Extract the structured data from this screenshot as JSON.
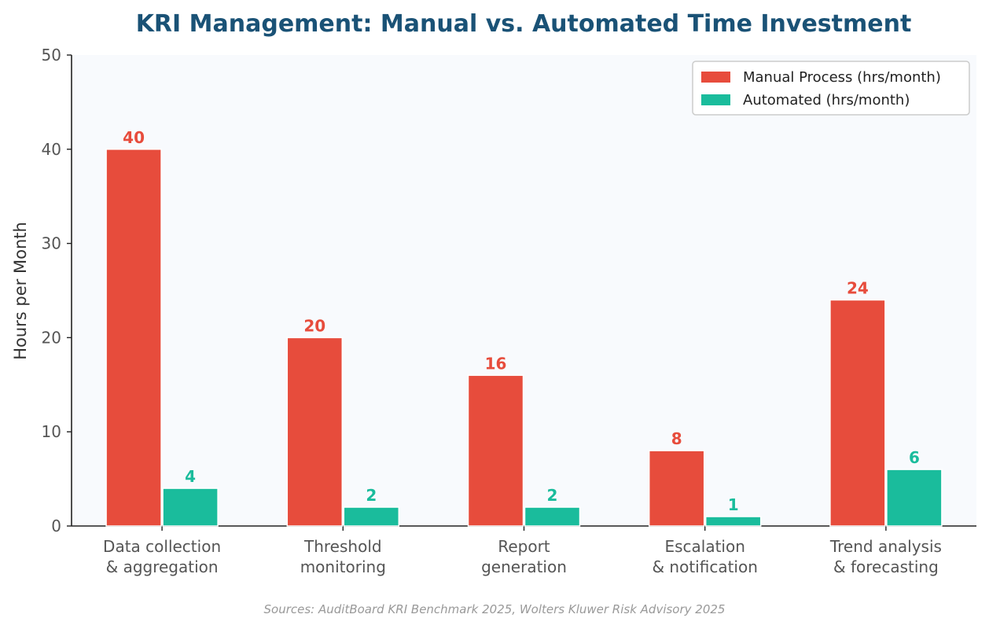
{
  "chart_data": {
    "type": "bar",
    "title": "KRI Management: Manual vs. Automated Time Investment",
    "ylabel": "Hours per Month",
    "xlabel": "",
    "ylim": [
      0,
      50
    ],
    "yticks": [
      0,
      10,
      20,
      30,
      40,
      50
    ],
    "grid": false,
    "legend_position": "top-right",
    "categories": [
      [
        "Data collection",
        "& aggregation"
      ],
      [
        "Threshold",
        "monitoring"
      ],
      [
        "Report",
        "generation"
      ],
      [
        "Escalation",
        "& notification"
      ],
      [
        "Trend analysis",
        "& forecasting"
      ]
    ],
    "series": [
      {
        "name": "Manual Process (hrs/month)",
        "values": [
          40,
          20,
          16,
          8,
          24
        ],
        "color": "#e74c3c"
      },
      {
        "name": "Automated (hrs/month)",
        "values": [
          4,
          2,
          2,
          1,
          6
        ],
        "color": "#1abc9c"
      }
    ],
    "source": "Sources: AuditBoard KRI Benchmark 2025, Wolters Kluwer Risk Advisory 2025"
  },
  "colors": {
    "plot_background": "#f8fafd",
    "title": "#1a5276",
    "axis": "#222222",
    "tick_text": "#555555",
    "source_text": "#999999"
  }
}
